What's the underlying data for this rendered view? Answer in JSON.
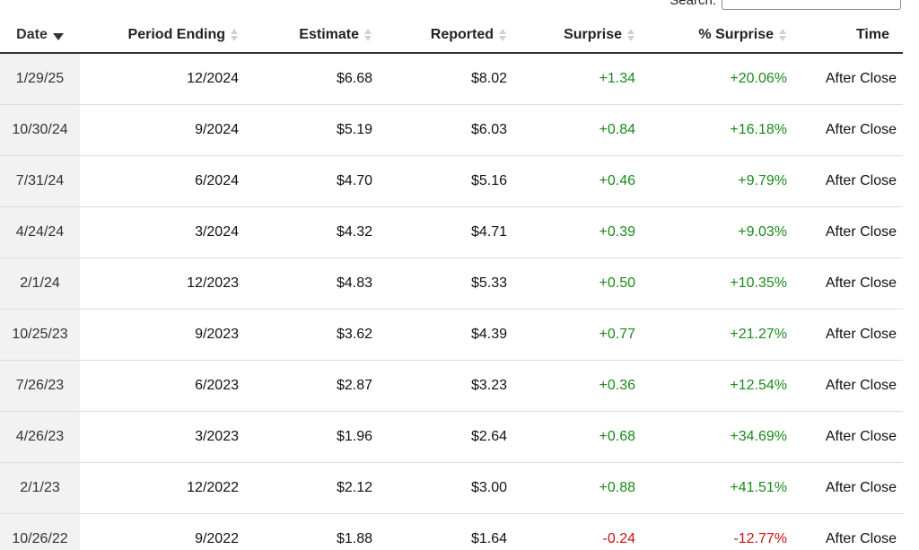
{
  "search": {
    "label": "Search:",
    "value": ""
  },
  "columns": {
    "date": "Date",
    "period": "Period Ending",
    "estimate": "Estimate",
    "reported": "Reported",
    "surprise": "Surprise",
    "pct_surprise": "% Surprise",
    "time": "Time"
  },
  "rows": [
    {
      "date": "1/29/25",
      "period": "12/2024",
      "estimate": "$6.68",
      "reported": "$8.02",
      "surprise": "+1.34",
      "pct_surprise": "+20.06%",
      "time": "After Close"
    },
    {
      "date": "10/30/24",
      "period": "9/2024",
      "estimate": "$5.19",
      "reported": "$6.03",
      "surprise": "+0.84",
      "pct_surprise": "+16.18%",
      "time": "After Close"
    },
    {
      "date": "7/31/24",
      "period": "6/2024",
      "estimate": "$4.70",
      "reported": "$5.16",
      "surprise": "+0.46",
      "pct_surprise": "+9.79%",
      "time": "After Close"
    },
    {
      "date": "4/24/24",
      "period": "3/2024",
      "estimate": "$4.32",
      "reported": "$4.71",
      "surprise": "+0.39",
      "pct_surprise": "+9.03%",
      "time": "After Close"
    },
    {
      "date": "2/1/24",
      "period": "12/2023",
      "estimate": "$4.83",
      "reported": "$5.33",
      "surprise": "+0.50",
      "pct_surprise": "+10.35%",
      "time": "After Close"
    },
    {
      "date": "10/25/23",
      "period": "9/2023",
      "estimate": "$3.62",
      "reported": "$4.39",
      "surprise": "+0.77",
      "pct_surprise": "+21.27%",
      "time": "After Close"
    },
    {
      "date": "7/26/23",
      "period": "6/2023",
      "estimate": "$2.87",
      "reported": "$3.23",
      "surprise": "+0.36",
      "pct_surprise": "+12.54%",
      "time": "After Close"
    },
    {
      "date": "4/26/23",
      "period": "3/2023",
      "estimate": "$1.96",
      "reported": "$2.64",
      "surprise": "+0.68",
      "pct_surprise": "+34.69%",
      "time": "After Close"
    },
    {
      "date": "2/1/23",
      "period": "12/2022",
      "estimate": "$2.12",
      "reported": "$3.00",
      "surprise": "+0.88",
      "pct_surprise": "+41.51%",
      "time": "After Close"
    },
    {
      "date": "10/26/22",
      "period": "9/2022",
      "estimate": "$1.88",
      "reported": "$1.64",
      "surprise": "-0.24",
      "pct_surprise": "-12.77%",
      "time": "After Close"
    }
  ],
  "colors": {
    "positive": "#1a8a1a",
    "negative": "#cc1111"
  },
  "sort": {
    "column": "date",
    "direction": "descending"
  }
}
